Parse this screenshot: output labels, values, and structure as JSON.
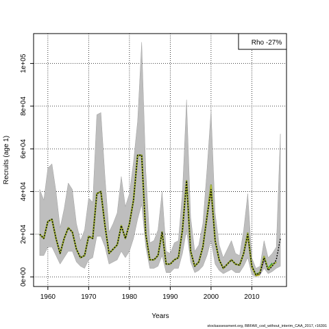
{
  "chart_data": {
    "type": "line",
    "xlabel": "Years",
    "ylabel": "Recruits (age 1)",
    "xlim": [
      1956.5,
      2018.5
    ],
    "ylim": [
      -4500,
      114000
    ],
    "x_ticks": [
      1960,
      1970,
      1980,
      1990,
      2000,
      2010
    ],
    "x_tick_labels": [
      "1960",
      "1970",
      "1980",
      "1990",
      "2000",
      "2010"
    ],
    "y_ticks": [
      0,
      20000,
      40000,
      60000,
      80000,
      100000
    ],
    "y_tick_labels": [
      "0e+00",
      "2e+04",
      "4e+04",
      "6e+04",
      "8e+04",
      "1e+05"
    ],
    "grid": true,
    "legend_box": "Rho -27%",
    "legend_placement": "top-right",
    "footer": "stockassessment.org, BBFAR_cod_without_interim_CAA_2017, r16391",
    "colors": {
      "band": "#bebebe",
      "band_edge": "#a0a0a0",
      "peel_lines": [
        "#1f78b4",
        "#33a02c",
        "#17becf",
        "#6a3d9a",
        "#b2b200",
        "#8c9a3a"
      ],
      "final": "#000000"
    },
    "band": {
      "x": [
        1958,
        1959,
        1960,
        1961,
        1962,
        1963,
        1964,
        1965,
        1966,
        1967,
        1968,
        1969,
        1970,
        1971,
        1972,
        1973,
        1974,
        1975,
        1976,
        1977,
        1978,
        1979,
        1980,
        1981,
        1982,
        1983,
        1984,
        1985,
        1986,
        1987,
        1988,
        1989,
        1990,
        1991,
        1992,
        1993,
        1994,
        1995,
        1996,
        1997,
        1998,
        1999,
        2000,
        2001,
        2002,
        2003,
        2004,
        2005,
        2006,
        2007,
        2008,
        2009,
        2010,
        2011,
        2012,
        2013,
        2014,
        2015,
        2016,
        2017
      ],
      "upper": [
        41000,
        36000,
        51000,
        53000,
        40000,
        23000,
        32000,
        44000,
        41000,
        25000,
        17000,
        22000,
        37000,
        35000,
        76000,
        77000,
        47000,
        21000,
        25000,
        30000,
        47000,
        33000,
        39000,
        54000,
        73000,
        110000,
        50000,
        16000,
        17000,
        22000,
        40000,
        12000,
        11000,
        16000,
        17000,
        40000,
        83000,
        28000,
        12000,
        15000,
        25000,
        50000,
        78000,
        30000,
        15000,
        9000,
        13000,
        17000,
        11000,
        10000,
        22000,
        39000,
        9000,
        4000,
        5000,
        17000,
        9000,
        11000,
        14000,
        67000
      ],
      "lower": [
        10000,
        10000,
        14000,
        14000,
        10000,
        6000,
        9000,
        12000,
        12000,
        7000,
        5000,
        4000,
        8000,
        9000,
        19000,
        19000,
        14000,
        6000,
        7000,
        8000,
        12000,
        9000,
        12000,
        18000,
        27000,
        34000,
        14000,
        4000,
        4000,
        5000,
        10000,
        2000,
        2000,
        4000,
        4000,
        11000,
        22000,
        7000,
        2000,
        3000,
        5000,
        10000,
        17000,
        6000,
        3000,
        1500,
        2500,
        3500,
        2000,
        2000,
        5000,
        9000,
        1000,
        200,
        800,
        4000,
        1500,
        2500,
        4000,
        5000
      ]
    },
    "series": [
      {
        "x": [
          1958,
          1959,
          1960,
          1961,
          1962,
          1963,
          1964,
          1965,
          1966,
          1967,
          1968,
          1969,
          1970,
          1971,
          1972,
          1973,
          1974,
          1975,
          1976,
          1977,
          1978,
          1979,
          1980,
          1981,
          1982,
          1983,
          1984,
          1985,
          1986,
          1987,
          1988,
          1989,
          1990,
          1991,
          1992,
          1993,
          1994,
          1995,
          1996,
          1997,
          1998,
          1999,
          2000,
          2001,
          2002,
          2003,
          2004,
          2005,
          2006,
          2007,
          2008,
          2009,
          2010,
          2011,
          2012,
          2013,
          2014,
          2015,
          2016,
          2017
        ],
        "values": [
          20000,
          18000,
          26000,
          27000,
          18000,
          11000,
          18000,
          23000,
          21000,
          13000,
          9000,
          10000,
          19000,
          18000,
          39000,
          40000,
          24000,
          11000,
          13000,
          15000,
          24000,
          18000,
          25000,
          36000,
          57000,
          57000,
          20000,
          8000,
          8000,
          10000,
          21000,
          6000,
          6000,
          8000,
          9000,
          22000,
          45000,
          12000,
          5000,
          7000,
          14000,
          28000,
          41000,
          17000,
          8000,
          4000,
          6000,
          8000,
          6000,
          5500,
          11000,
          20000,
          5000,
          1000,
          1800,
          9000,
          3000,
          5000,
          8000,
          18000
        ]
      },
      {
        "x": [
          1958,
          1959,
          1960,
          1961,
          1962,
          1963,
          1964,
          1965,
          1966,
          1967,
          1968,
          1969,
          1970,
          1971,
          1972,
          1973,
          1974,
          1975,
          1976,
          1977,
          1978,
          1979,
          1980,
          1981,
          1982,
          1983,
          1984,
          1985,
          1986,
          1987,
          1988,
          1989,
          1990,
          1991,
          1992,
          1993,
          1994,
          1995,
          1996,
          1997,
          1998,
          1999,
          2000,
          2001,
          2002,
          2003,
          2004,
          2005,
          2006,
          2007,
          2008,
          2009,
          2010,
          2011,
          2012,
          2013,
          2014,
          2015,
          2016
        ],
        "values": [
          20000,
          18000,
          26000,
          27000,
          18000,
          11000,
          18000,
          23000,
          21000,
          13000,
          9000,
          10000,
          19000,
          18000,
          39000,
          40000,
          24000,
          11000,
          13000,
          15000,
          24000,
          18000,
          25000,
          36000,
          57000,
          57000,
          20000,
          8000,
          8000,
          10000,
          21000,
          6000,
          6000,
          8000,
          9000,
          22000,
          45000,
          12000,
          5000,
          7000,
          14000,
          28000,
          43000,
          17000,
          8000,
          4000,
          6000,
          8000,
          6000,
          5500,
          11000,
          20500,
          5000,
          1000,
          2000,
          9500,
          3500,
          5500,
          7000
        ]
      },
      {
        "x": [
          1958,
          1959,
          1960,
          1961,
          1962,
          1963,
          1964,
          1965,
          1966,
          1967,
          1968,
          1969,
          1970,
          1971,
          1972,
          1973,
          1974,
          1975,
          1976,
          1977,
          1978,
          1979,
          1980,
          1981,
          1982,
          1983,
          1984,
          1985,
          1986,
          1987,
          1988,
          1989,
          1990,
          1991,
          1992,
          1993,
          1994,
          1995,
          1996,
          1997,
          1998,
          1999,
          2000,
          2001,
          2002,
          2003,
          2004,
          2005,
          2006,
          2007,
          2008,
          2009,
          2010,
          2011,
          2012,
          2013,
          2014,
          2015
        ],
        "values": [
          20000,
          18000,
          26000,
          27000,
          18000,
          11000,
          18000,
          23000,
          21000,
          13000,
          9000,
          10000,
          19000,
          18000,
          39000,
          40000,
          24000,
          11000,
          13000,
          15000,
          24000,
          18000,
          25000,
          36000,
          57000,
          57000,
          20000,
          8000,
          8000,
          10000,
          21000,
          6000,
          6000,
          8000,
          9000,
          22000,
          45000,
          12000,
          5000,
          7000,
          14000,
          28000,
          42000,
          17000,
          8000,
          4000,
          6000,
          8000,
          6000,
          5500,
          11000,
          20000,
          5000,
          1200,
          2200,
          9500,
          4000,
          6500
        ]
      },
      {
        "x": [
          1958,
          1959,
          1960,
          1961,
          1962,
          1963,
          1964,
          1965,
          1966,
          1967,
          1968,
          1969,
          1970,
          1971,
          1972,
          1973,
          1974,
          1975,
          1976,
          1977,
          1978,
          1979,
          1980,
          1981,
          1982,
          1983,
          1984,
          1985,
          1986,
          1987,
          1988,
          1989,
          1990,
          1991,
          1992,
          1993,
          1994,
          1995,
          1996,
          1997,
          1998,
          1999,
          2000,
          2001,
          2002,
          2003,
          2004,
          2005,
          2006,
          2007,
          2008,
          2009,
          2010,
          2011,
          2012,
          2013,
          2014
        ],
        "values": [
          20000,
          18000,
          26000,
          27000,
          18000,
          11000,
          18000,
          23000,
          21000,
          13000,
          9000,
          10000,
          19000,
          18000,
          39000,
          40000,
          24000,
          11000,
          13000,
          15000,
          24000,
          18000,
          25000,
          36000,
          57000,
          57000,
          20000,
          8000,
          8000,
          10000,
          21000,
          6000,
          6000,
          8000,
          9000,
          22000,
          45000,
          12000,
          5000,
          7000,
          14000,
          28000,
          41000,
          17000,
          8000,
          4000,
          6000,
          8000,
          6000,
          5500,
          11000,
          19500,
          5000,
          1200,
          2000,
          9000,
          3500
        ]
      },
      {
        "x": [
          1958,
          1959,
          1960,
          1961,
          1962,
          1963,
          1964,
          1965,
          1966,
          1967,
          1968,
          1969,
          1970,
          1971,
          1972,
          1973,
          1974,
          1975,
          1976,
          1977,
          1978,
          1979,
          1980,
          1981,
          1982,
          1983,
          1984,
          1985,
          1986,
          1987,
          1988,
          1989,
          1990,
          1991,
          1992,
          1993,
          1994,
          1995,
          1996,
          1997,
          1998,
          1999,
          2000,
          2001,
          2002,
          2003,
          2004,
          2005,
          2006,
          2007,
          2008,
          2009,
          2010,
          2011,
          2012,
          2013
        ],
        "values": [
          20000,
          18000,
          26000,
          27000,
          18000,
          11000,
          18000,
          23000,
          21000,
          13000,
          9000,
          10000,
          19000,
          18000,
          39000,
          40000,
          24000,
          11000,
          13000,
          15000,
          24000,
          18000,
          25000,
          36000,
          57000,
          57000,
          20000,
          8000,
          8000,
          10000,
          21000,
          6000,
          6000,
          8000,
          9000,
          22000,
          45000,
          12000,
          5000,
          7000,
          14000,
          28000,
          40000,
          17000,
          8000,
          4000,
          6000,
          8000,
          6000,
          5500,
          11000,
          19000,
          5000,
          800,
          1500,
          8000
        ]
      },
      {
        "x": [
          1958,
          1959,
          1960,
          1961,
          1962,
          1963,
          1964,
          1965,
          1966,
          1967,
          1968,
          1969,
          1970,
          1971,
          1972,
          1973,
          1974,
          1975,
          1976,
          1977,
          1978,
          1979,
          1980,
          1981,
          1982,
          1983,
          1984,
          1985,
          1986,
          1987,
          1988,
          1989,
          1990,
          1991,
          1992,
          1993,
          1994,
          1995,
          1996,
          1997,
          1998,
          1999,
          2000,
          2001,
          2002,
          2003,
          2004,
          2005,
          2006,
          2007,
          2008,
          2009,
          2010,
          2011,
          2012
        ],
        "values": [
          20000,
          18000,
          26000,
          27000,
          18000,
          11000,
          18000,
          23000,
          21000,
          13000,
          9000,
          10000,
          19000,
          18000,
          39000,
          40000,
          24000,
          11000,
          13000,
          15000,
          24000,
          18000,
          25000,
          36000,
          57000,
          57000,
          20000,
          8000,
          8000,
          10000,
          21000,
          6000,
          6000,
          8000,
          9000,
          22000,
          45000,
          12000,
          5000,
          7000,
          14000,
          28000,
          40000,
          17000,
          8000,
          4000,
          6000,
          8000,
          6000,
          5500,
          11000,
          19000,
          4500,
          600,
          1000
        ]
      }
    ]
  }
}
